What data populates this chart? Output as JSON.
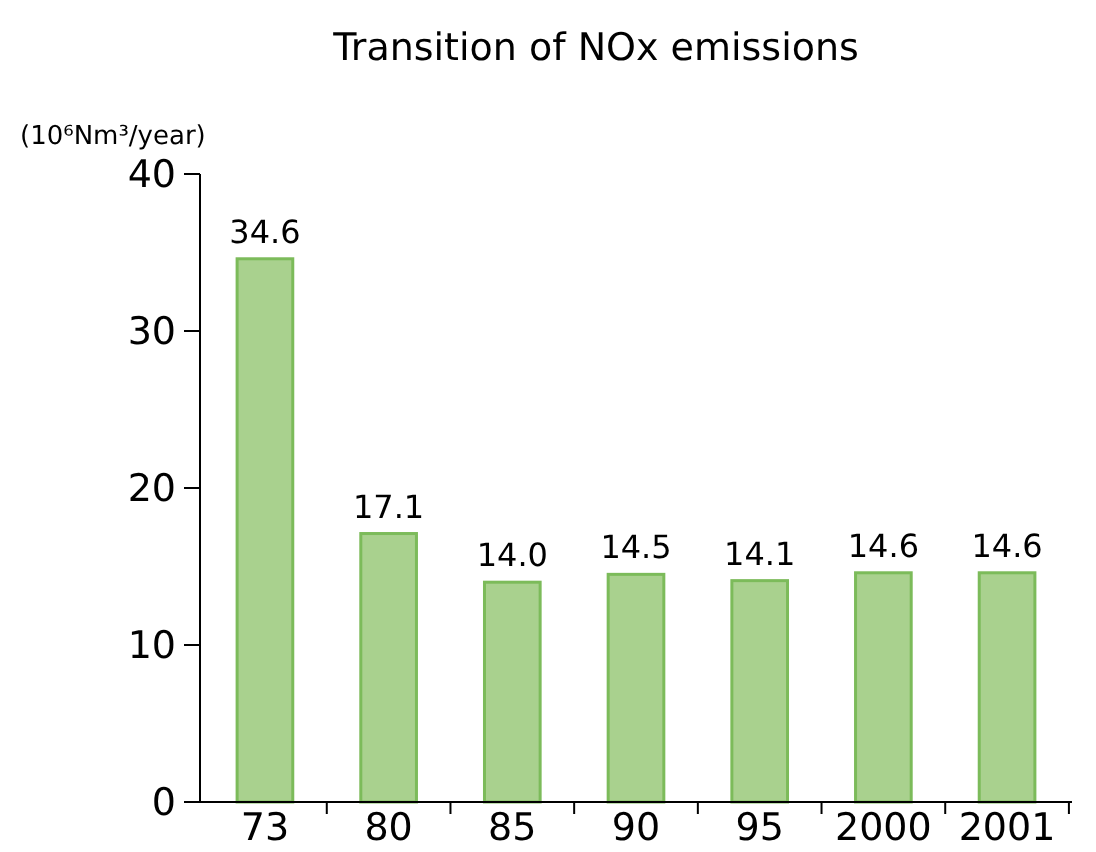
{
  "chart_data": {
    "type": "bar",
    "title": "Transition of NOx emissions",
    "ylabel": "(10⁶Nm³/year)",
    "categories": [
      "73",
      "80",
      "85",
      "90",
      "95",
      "2000",
      "2001"
    ],
    "values": [
      34.6,
      17.1,
      14.0,
      14.5,
      14.1,
      14.6,
      14.6
    ],
    "value_labels": [
      "34.6",
      "17.1",
      "14.0",
      "14.5",
      "14.1",
      "14.6",
      "14.6"
    ],
    "color": "#a9d18e",
    "ylim": [
      0,
      40
    ],
    "yticks": [
      0,
      10,
      20,
      30,
      40
    ]
  }
}
